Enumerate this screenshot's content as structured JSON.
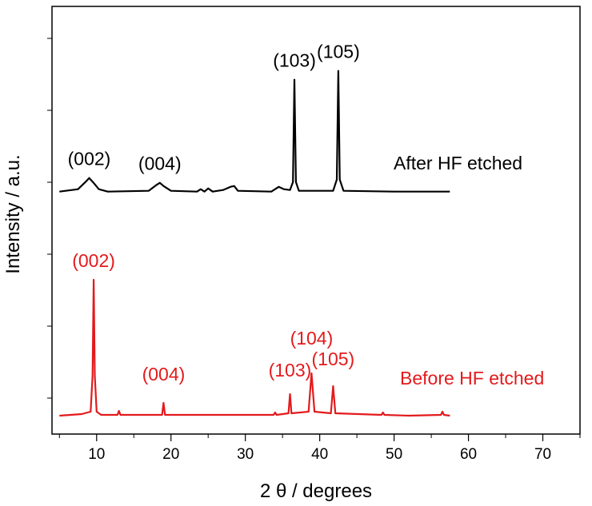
{
  "chart_data": {
    "type": "line",
    "xlabel": "2 θ / degrees",
    "ylabel": "Intensity / a.u.",
    "xlim": [
      4,
      75
    ],
    "xticks": [
      10,
      20,
      30,
      40,
      50,
      60,
      70
    ],
    "y_tick_labels": false,
    "grid": false,
    "colors": {
      "after": "#000000",
      "before": "#e31a1c"
    },
    "series": [
      {
        "key": "after",
        "name": "After HF etched",
        "label": "After HF etched",
        "color": "#000000",
        "baseline": 0.53,
        "points": [
          [
            5.0,
            0.0
          ],
          [
            7.5,
            0.3
          ],
          [
            8.5,
            1.2
          ],
          [
            9.0,
            1.7
          ],
          [
            9.5,
            1.2
          ],
          [
            10.3,
            0.3
          ],
          [
            11.5,
            0.0
          ],
          [
            17.0,
            0.1
          ],
          [
            18.0,
            0.8
          ],
          [
            18.5,
            1.1
          ],
          [
            19.0,
            0.7
          ],
          [
            20.0,
            0.1
          ],
          [
            23.5,
            0.0
          ],
          [
            24.0,
            0.3
          ],
          [
            24.5,
            0.0
          ],
          [
            25.0,
            0.4
          ],
          [
            25.6,
            0.0
          ],
          [
            27.0,
            0.2
          ],
          [
            28.0,
            0.6
          ],
          [
            28.5,
            0.7
          ],
          [
            29.0,
            0.1
          ],
          [
            33.5,
            0.0
          ],
          [
            34.5,
            0.6
          ],
          [
            35.2,
            0.3
          ],
          [
            36.0,
            0.2
          ],
          [
            36.4,
            1.2
          ],
          [
            36.6,
            14.0
          ],
          [
            36.8,
            1.2
          ],
          [
            37.2,
            0.1
          ],
          [
            41.8,
            0.1
          ],
          [
            42.3,
            1.5
          ],
          [
            42.5,
            15.1
          ],
          [
            42.7,
            1.5
          ],
          [
            43.2,
            0.1
          ],
          [
            50.0,
            0.0
          ],
          [
            55.0,
            0.0
          ],
          [
            57.5,
            0.0
          ]
        ],
        "peak_labels": [
          {
            "text": "(002)",
            "x": 9.0
          },
          {
            "text": "(004)",
            "x": 18.5
          },
          {
            "text": "(103)",
            "x": 36.6
          },
          {
            "text": "(105)",
            "x": 42.5
          }
        ]
      },
      {
        "key": "before",
        "name": "Before HF etched",
        "label": "Before HF etched",
        "color": "#e31a1c",
        "baseline": 0.0,
        "points": [
          [
            5.0,
            0.0
          ],
          [
            8.0,
            0.2
          ],
          [
            9.2,
            0.5
          ],
          [
            9.45,
            5.0
          ],
          [
            9.6,
            17.0
          ],
          [
            9.75,
            5.0
          ],
          [
            10.0,
            0.5
          ],
          [
            10.6,
            0.1
          ],
          [
            12.8,
            0.1
          ],
          [
            13.0,
            0.6
          ],
          [
            13.2,
            0.1
          ],
          [
            18.8,
            0.1
          ],
          [
            19.0,
            1.6
          ],
          [
            19.2,
            0.1
          ],
          [
            33.8,
            0.1
          ],
          [
            34.0,
            0.4
          ],
          [
            34.2,
            0.1
          ],
          [
            35.8,
            0.3
          ],
          [
            36.0,
            2.7
          ],
          [
            36.2,
            0.3
          ],
          [
            38.5,
            0.5
          ],
          [
            38.9,
            5.3
          ],
          [
            39.3,
            0.5
          ],
          [
            41.5,
            0.3
          ],
          [
            41.8,
            3.7
          ],
          [
            42.1,
            0.3
          ],
          [
            48.3,
            0.1
          ],
          [
            48.5,
            0.4
          ],
          [
            48.7,
            0.1
          ],
          [
            52.0,
            0.0
          ],
          [
            56.3,
            0.1
          ],
          [
            56.5,
            0.5
          ],
          [
            56.7,
            0.1
          ],
          [
            57.5,
            0.0
          ]
        ],
        "peak_labels": [
          {
            "text": "(002)",
            "x": 9.6
          },
          {
            "text": "(004)",
            "x": 19.0
          },
          {
            "text": "(103)",
            "x": 36.0
          },
          {
            "text": "(104)",
            "x": 38.9
          },
          {
            "text": "(105)",
            "x": 41.8
          }
        ]
      }
    ]
  }
}
